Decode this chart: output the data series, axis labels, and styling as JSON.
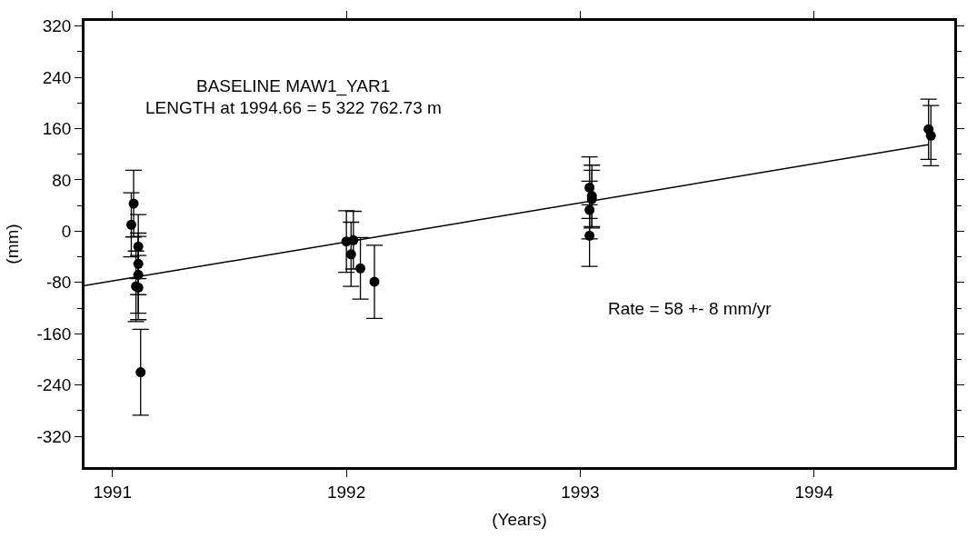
{
  "chart_data": {
    "type": "scatter",
    "xlabel": "(Years)",
    "ylabel": "(mm)",
    "annotations": [
      "BASELINE MAW1_YAR1",
      "LENGTH at 1994.66 = 5 322 762.73 m",
      "Rate = 58 +- 8 mm/yr"
    ],
    "series": [
      {
        "color": "#000000",
        "marker": "circle",
        "x": [
          1991.09,
          1991.08,
          1991.11,
          1991.11,
          1991.11,
          1991.1,
          1991.11,
          1991.12,
          1992.0,
          1992.03,
          1992.02,
          1992.06,
          1992.12,
          1993.04,
          1993.05,
          1993.05,
          1993.04,
          1993.04,
          1994.49,
          1994.5
        ],
        "values": [
          43,
          10,
          -24,
          -51,
          -68,
          -86,
          -88,
          -220,
          -16,
          -14,
          -36,
          -58,
          -79,
          68,
          55,
          50,
          33,
          -7,
          159,
          149
        ],
        "errors": [
          52,
          50,
          50,
          48,
          60,
          55,
          50,
          67,
          48,
          45,
          50,
          48,
          57,
          48,
          48,
          45,
          45,
          48,
          47,
          47
        ]
      },
      {
        "type": "line",
        "color": "#000000",
        "x": [
          1990.88,
          1994.49
        ],
        "values": [
          -85,
          135
        ]
      }
    ],
    "xlim": [
      1990.88,
      1994.6
    ],
    "xticks": [
      1991,
      1992,
      1993,
      1994
    ],
    "ylim": [
      -368,
      328
    ],
    "yticks": [
      -320,
      -240,
      -160,
      -80,
      0,
      80,
      160,
      240,
      320
    ]
  }
}
